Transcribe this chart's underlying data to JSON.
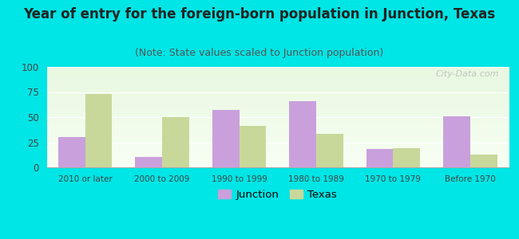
{
  "title": "Year of entry for the foreign-born population in Junction, Texas",
  "subtitle": "(Note: State values scaled to Junction population)",
  "categories": [
    "2010 or later",
    "2000 to 2009",
    "1990 to 1999",
    "1980 to 1989",
    "1970 to 1979",
    "Before 1970"
  ],
  "junction_values": [
    30,
    10,
    57,
    66,
    18,
    51
  ],
  "texas_values": [
    73,
    50,
    41,
    33,
    19,
    13
  ],
  "junction_color": "#c9a0dc",
  "texas_color": "#c8d89a",
  "background_color": "#00e5e5",
  "ylim": [
    0,
    100
  ],
  "yticks": [
    0,
    25,
    50,
    75,
    100
  ],
  "bar_width": 0.35,
  "legend_junction": "Junction",
  "legend_texas": "Texas",
  "title_fontsize": 12,
  "subtitle_fontsize": 9,
  "watermark": "City-Data.com"
}
